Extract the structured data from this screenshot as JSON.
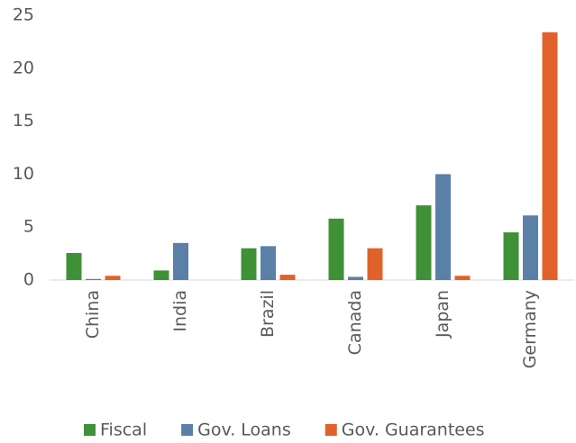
{
  "chart_data": {
    "type": "bar",
    "categories": [
      "China",
      "India",
      "Brazil",
      "Canada",
      "Japan",
      "Germany"
    ],
    "series": [
      {
        "name": "Fiscal",
        "color": "#3e9137",
        "values": [
          2.55,
          0.9,
          3.0,
          5.8,
          7.05,
          4.5
        ]
      },
      {
        "name": "Gov. Loans",
        "color": "#5b80a8",
        "values": [
          0.1,
          3.5,
          3.2,
          0.3,
          10.0,
          6.1
        ]
      },
      {
        "name": "Gov. Guarantees",
        "color": "#e0622a",
        "values": [
          0.4,
          0,
          0.5,
          3.0,
          0.4,
          23.4
        ]
      }
    ],
    "ylim": [
      0,
      25
    ],
    "yticks": [
      0,
      5,
      10,
      15,
      20,
      25
    ],
    "grid": false,
    "legend": "bottom"
  }
}
